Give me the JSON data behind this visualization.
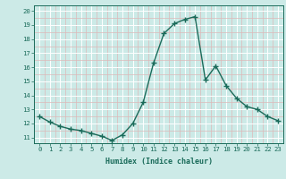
{
  "x": [
    0,
    1,
    2,
    3,
    4,
    5,
    6,
    7,
    8,
    9,
    10,
    11,
    12,
    13,
    14,
    15,
    16,
    17,
    18,
    19,
    20,
    21,
    22,
    23
  ],
  "y": [
    12.5,
    12.1,
    11.8,
    11.6,
    11.5,
    11.3,
    11.1,
    10.8,
    11.2,
    12.0,
    13.5,
    16.3,
    18.4,
    19.1,
    19.4,
    19.6,
    15.1,
    16.1,
    14.7,
    13.8,
    13.2,
    13.0,
    12.5,
    12.2
  ],
  "line_color": "#1a6b5a",
  "marker": "+",
  "marker_size": 4,
  "bg_color": "#cceae7",
  "grid_major_color": "#ffffff",
  "grid_minor_color": "#ddb8b8",
  "xlabel": "Humidex (Indice chaleur)",
  "yticks": [
    11,
    12,
    13,
    14,
    15,
    16,
    17,
    18,
    19,
    20
  ],
  "xticks": [
    0,
    1,
    2,
    3,
    4,
    5,
    6,
    7,
    8,
    9,
    10,
    11,
    12,
    13,
    14,
    15,
    16,
    17,
    18,
    19,
    20,
    21,
    22,
    23
  ],
  "xlim": [
    -0.5,
    23.5
  ],
  "ylim": [
    10.6,
    20.4
  ],
  "tick_color": "#1a6b5a",
  "font_color": "#1a6b5a",
  "xlabel_fontsize": 6.0,
  "tick_fontsize": 5.2,
  "linewidth": 1.0,
  "markeredgewidth": 1.0
}
